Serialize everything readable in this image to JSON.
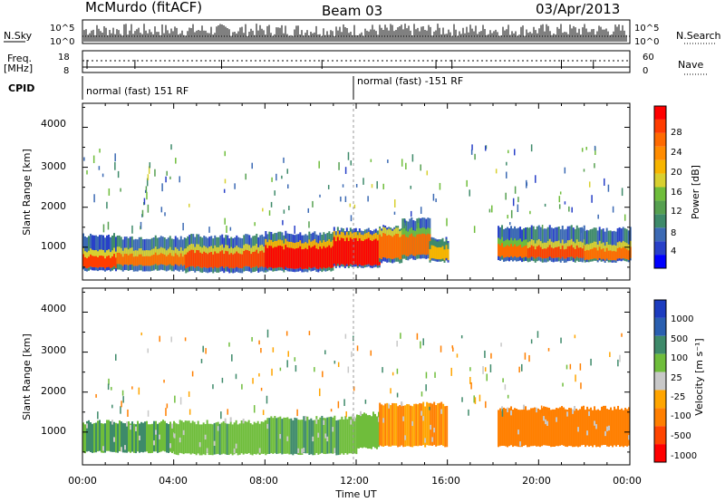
{
  "header": {
    "station": "McMurdo (fitACF)",
    "beam": "Beam 03",
    "date": "03/Apr/2013"
  },
  "noise_panel": {
    "left_label": "N.Sky",
    "right_label": "N.Search",
    "left_ticks": [
      "10^5",
      "10^0"
    ],
    "right_ticks": [
      "10^5",
      "10^0"
    ]
  },
  "freq_panel": {
    "left_label_1": "Freq.",
    "left_label_2": "[MHz]",
    "right_label": "Nave",
    "left_ticks": [
      "18",
      "8"
    ],
    "right_ticks": [
      "60",
      "0"
    ],
    "freq_mhz": 12,
    "nave": 30
  },
  "cpid_panel": {
    "label": "CPID",
    "segments": [
      {
        "text": "normal (fast) 151 RF",
        "start_hour": 0
      },
      {
        "text": "normal (fast) -151 RF",
        "start_hour": 12
      }
    ]
  },
  "power_panel": {
    "ylabel": "Slant Range [km]",
    "yticks": [
      "1000",
      "2000",
      "3000",
      "4000"
    ],
    "colorbar": {
      "label": "Power [dB]",
      "ticks": [
        "4",
        "8",
        "12",
        "16",
        "20",
        "24",
        "28"
      ],
      "colors": [
        "#0000ff",
        "#2840c8",
        "#3c6ab4",
        "#3e8a6a",
        "#56a050",
        "#6fbd3b",
        "#d8d030",
        "#f7b500",
        "#ff8c00",
        "#ff6a00",
        "#ff3c00",
        "#ff0000"
      ]
    }
  },
  "velocity_panel": {
    "ylabel": "Slant Range [km]",
    "yticks": [
      "1000",
      "2000",
      "3000",
      "4000"
    ],
    "colorbar": {
      "label": "Velocity [m s⁻¹]",
      "ticks": [
        "1000",
        "500",
        "100",
        "25",
        "-25",
        "-100",
        "-500",
        "-1000"
      ],
      "colors": [
        "#1c3cbf",
        "#2a5fb0",
        "#3e8a6a",
        "#6fbd3b",
        "#c8c8c8",
        "#ffa500",
        "#ff7f00",
        "#ff4500",
        "#ff0000"
      ]
    }
  },
  "x_axis": {
    "label": "Time UT",
    "ticks": [
      "00:00",
      "04:00",
      "08:00",
      "12:00",
      "16:00",
      "20:00",
      "00:00"
    ]
  },
  "chart_data": [
    {
      "type": "heatmap",
      "title": "Power",
      "xlabel": "Time UT",
      "ylabel": "Slant Range [km]",
      "xlim": [
        0,
        24
      ],
      "ylim": [
        180,
        4600
      ],
      "colorbar_label": "Power [dB]",
      "colorbar_range": [
        0,
        32
      ],
      "bands": [
        {
          "start_hour": 0.0,
          "end_hour": 1.5,
          "lo_km": 420,
          "hi_km": 1300,
          "core_lo_km": 500,
          "core_hi_km": 780,
          "power_db": 28
        },
        {
          "start_hour": 1.5,
          "end_hour": 4.5,
          "lo_km": 420,
          "hi_km": 1250,
          "core_lo_km": 560,
          "core_hi_km": 820,
          "power_db": 26
        },
        {
          "start_hour": 4.5,
          "end_hour": 8.0,
          "lo_km": 380,
          "hi_km": 1280,
          "core_lo_km": 500,
          "core_hi_km": 880,
          "power_db": 28
        },
        {
          "start_hour": 8.0,
          "end_hour": 11.0,
          "lo_km": 400,
          "hi_km": 1350,
          "core_lo_km": 480,
          "core_hi_km": 1000,
          "power_db": 30
        },
        {
          "start_hour": 11.0,
          "end_hour": 13.0,
          "lo_km": 500,
          "hi_km": 1450,
          "core_lo_km": 560,
          "core_hi_km": 1200,
          "power_db": 30
        },
        {
          "start_hour": 13.0,
          "end_hour": 14.0,
          "lo_km": 620,
          "hi_km": 1500,
          "core_lo_km": 720,
          "core_hi_km": 1300,
          "power_db": 26
        },
        {
          "start_hour": 14.0,
          "end_hour": 15.2,
          "lo_km": 700,
          "hi_km": 1700,
          "core_lo_km": 800,
          "core_hi_km": 1300,
          "power_db": 24
        },
        {
          "start_hour": 15.2,
          "end_hour": 16.0,
          "lo_km": 640,
          "hi_km": 1200,
          "core_lo_km": 700,
          "core_hi_km": 1000,
          "power_db": 20
        },
        {
          "start_hour": 18.2,
          "end_hour": 19.5,
          "lo_km": 660,
          "hi_km": 1500,
          "core_lo_km": 760,
          "core_hi_km": 1050,
          "power_db": 24
        },
        {
          "start_hour": 19.5,
          "end_hour": 22.0,
          "lo_km": 640,
          "hi_km": 1500,
          "core_lo_km": 740,
          "core_hi_km": 1000,
          "power_db": 28
        },
        {
          "start_hour": 22.0,
          "end_hour": 24.0,
          "lo_km": 640,
          "hi_km": 1450,
          "core_lo_km": 700,
          "core_hi_km": 950,
          "power_db": 26
        }
      ]
    },
    {
      "type": "heatmap",
      "title": "Velocity",
      "xlabel": "Time UT",
      "ylabel": "Slant Range [km]",
      "xlim": [
        0,
        24
      ],
      "ylim": [
        180,
        4600
      ],
      "colorbar_label": "Velocity [m s⁻¹]",
      "colorbar_range": [
        -1000,
        1000
      ],
      "bands": [
        {
          "start_hour": 0.0,
          "end_hour": 4.0,
          "lo_km": 500,
          "hi_km": 1250,
          "velocity": 100
        },
        {
          "start_hour": 4.0,
          "end_hour": 8.0,
          "lo_km": 450,
          "hi_km": 1250,
          "velocity": 80
        },
        {
          "start_hour": 8.0,
          "end_hour": 12.0,
          "lo_km": 450,
          "hi_km": 1350,
          "velocity": 90
        },
        {
          "start_hour": 12.0,
          "end_hour": 13.0,
          "lo_km": 600,
          "hi_km": 1450,
          "velocity": 60
        },
        {
          "start_hour": 13.0,
          "end_hour": 16.0,
          "lo_km": 650,
          "hi_km": 1700,
          "velocity": -100
        },
        {
          "start_hour": 18.2,
          "end_hour": 24.0,
          "lo_km": 650,
          "hi_km": 1600,
          "velocity": -150
        }
      ]
    }
  ]
}
